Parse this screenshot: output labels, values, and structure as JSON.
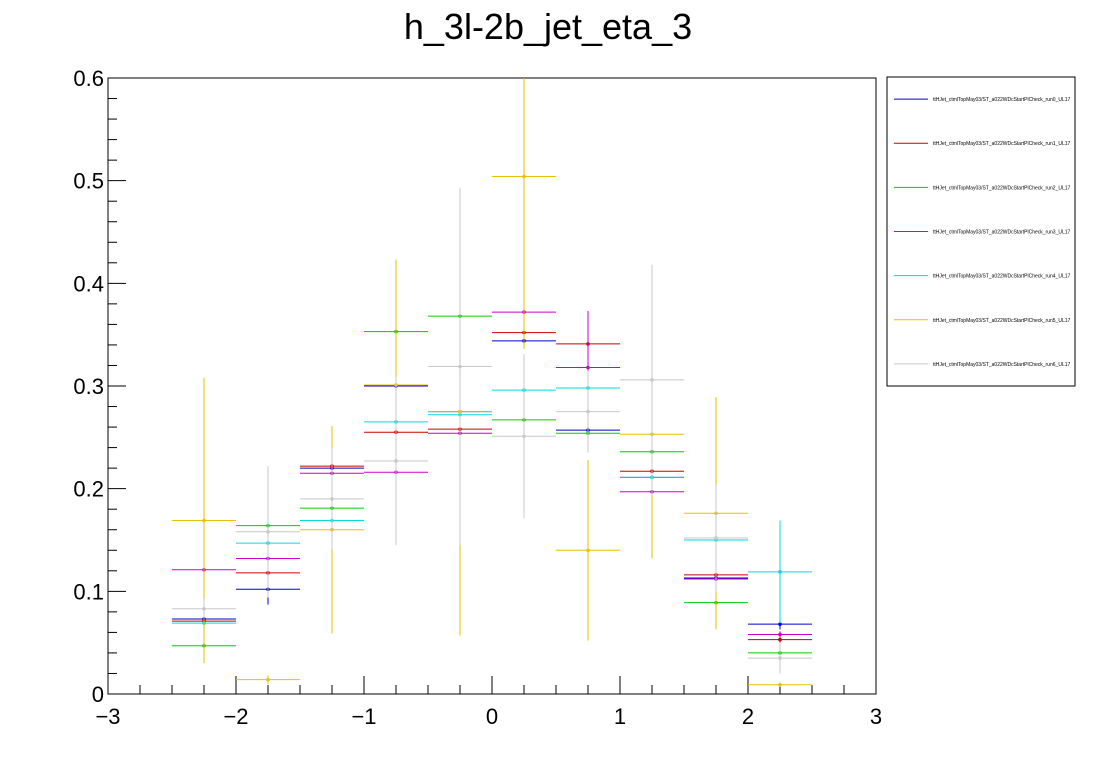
{
  "chart_data": {
    "type": "scatter",
    "title": "h_3l-2b_jet_eta_3",
    "xlabel": "",
    "ylabel": "",
    "xlim": [
      -3,
      3
    ],
    "ylim": [
      0,
      0.6
    ],
    "x_ticks": [
      "−3",
      "−2",
      "−1",
      "0",
      "1",
      "2",
      "3"
    ],
    "y_ticks": [
      "0",
      "0.1",
      "0.2",
      "0.3",
      "0.4",
      "0.5",
      "0.6"
    ],
    "bin_edges": [
      -2.5,
      -2.0,
      -1.5,
      -1.0,
      -0.5,
      0.0,
      0.5,
      1.0,
      1.5,
      2.0,
      2.5
    ],
    "legend_position": "right",
    "series": [
      {
        "name": "ttHJet_ctmlTopMay03/ST_a022WDcStartPlCheck_run0_UL17",
        "color": "#0000cc",
        "values": [
          0.073,
          0.102,
          0.22,
          0.3,
          0.275,
          0.344,
          0.257,
          0.211,
          0.113,
          0.068
        ],
        "errors": [
          0.004,
          0.015,
          0.005,
          0.003,
          0.004,
          0.004,
          0.003,
          0.003,
          0.003,
          0.005
        ]
      },
      {
        "name": "ttHJet_ctmlTopMay03/ST_a022WDcStartPlCheck_run1_UL17",
        "color": "#cc0000",
        "values": [
          0.071,
          0.118,
          0.222,
          0.255,
          0.258,
          0.352,
          0.341,
          0.217,
          0.116,
          0.053
        ],
        "errors": [
          0.004,
          0.004,
          0.004,
          0.004,
          0.004,
          0.005,
          0.005,
          0.004,
          0.003,
          0.003
        ]
      },
      {
        "name": "ttHJet_ctmlTopMay03/ST_a022WDcStartPlCheck_run2_UL17",
        "color": "#00cc00",
        "values": [
          0.047,
          0.164,
          0.181,
          0.353,
          0.368,
          0.267,
          0.254,
          0.236,
          0.089,
          0.04
        ],
        "errors": [
          0.003,
          0.004,
          0.004,
          0.005,
          0.005,
          0.004,
          0.004,
          0.004,
          0.003,
          0.002
        ]
      },
      {
        "name": "ttHJet_ctmlTopMay03/ST_a022WDcStartPlCheck_run3_UL17",
        "color": "#cc00cc",
        "values": [
          0.121,
          0.132,
          0.215,
          0.216,
          0.254,
          0.372,
          0.318,
          0.197,
          0.112,
          0.058
        ],
        "errors": [
          0.004,
          0.004,
          0.004,
          0.004,
          0.004,
          0.005,
          0.055,
          0.004,
          0.003,
          0.003
        ]
      },
      {
        "name": "ttHJet_ctmlTopMay03/ST_a022WDcStartPlCheck_run4_UL17",
        "color": "#00dddd",
        "values": [
          0.069,
          0.147,
          0.169,
          0.265,
          0.272,
          0.296,
          0.298,
          0.211,
          0.15,
          0.119
        ],
        "errors": [
          0.004,
          0.004,
          0.004,
          0.004,
          0.004,
          0.005,
          0.005,
          0.004,
          0.003,
          0.05
        ]
      },
      {
        "name": "ttHJet_ctmlTopMay03/ST_a022WDcStartPlCheck_run5_UL17",
        "color": "#e6c200",
        "values": [
          0.169,
          0.014,
          0.16,
          0.301,
          0.275,
          0.504,
          0.14,
          0.253,
          0.176,
          0.009
        ],
        "errors": [
          0.139,
          0.004,
          0.101,
          0.122,
          0.218,
          0.168,
          0.088,
          0.121,
          0.113,
          0.002
        ]
      },
      {
        "name": "ttHJet_ctmlTopMay03/ST_a022WDcStartPlCheck_run6_UL17",
        "color": "#c8c8c8",
        "values": [
          0.083,
          0.158,
          0.19,
          0.227,
          0.319,
          0.251,
          0.275,
          0.306,
          0.152,
          0.035
        ],
        "errors": [
          0.01,
          0.064,
          0.05,
          0.082,
          0.174,
          0.08,
          0.04,
          0.112,
          0.052,
          0.015
        ]
      }
    ]
  }
}
